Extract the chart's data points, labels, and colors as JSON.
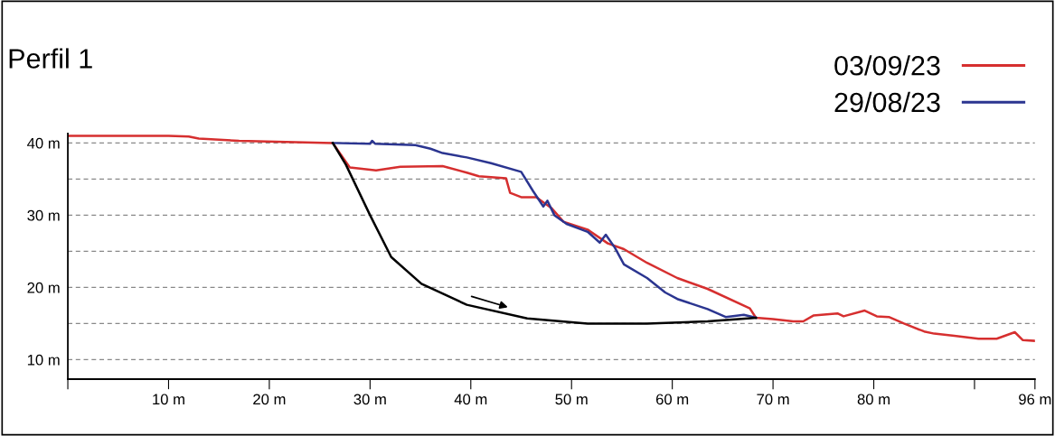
{
  "chart_data": {
    "type": "line",
    "title": "Perfil 1",
    "xlim": [
      0,
      96
    ],
    "ylim": [
      7.3,
      41.3
    ],
    "xticks": [
      {
        "value": 0,
        "label": null
      },
      {
        "value": 10,
        "label": "10 m"
      },
      {
        "value": 20,
        "label": "20 m"
      },
      {
        "value": 30,
        "label": "30 m"
      },
      {
        "value": 40,
        "label": "40 m"
      },
      {
        "value": 50,
        "label": "50 m"
      },
      {
        "value": 60,
        "label": "60 m"
      },
      {
        "value": 70,
        "label": "70 m"
      },
      {
        "value": 80,
        "label": "80 m"
      },
      {
        "value": 90,
        "label": null
      },
      {
        "value": 96,
        "label": "96 m"
      }
    ],
    "yticks": [
      {
        "value": 10,
        "label": "10 m"
      },
      {
        "value": 15,
        "label": null
      },
      {
        "value": 20,
        "label": "20 m"
      },
      {
        "value": 25,
        "label": null
      },
      {
        "value": 30,
        "label": "30 m"
      },
      {
        "value": 35,
        "label": null
      },
      {
        "value": 40,
        "label": "40 m"
      }
    ],
    "grid": "y",
    "legend": "top right",
    "line_style": "solid",
    "marker": "none",
    "series": [
      {
        "name": "03/09/23",
        "color": "#d62f2f",
        "x": [
          0,
          10,
          12,
          13,
          17,
          26.3,
          28.0,
          30.6,
          33,
          37.2,
          39.6,
          40.8,
          43.5,
          43.9,
          45.0,
          46.5,
          48.0,
          49.2,
          51.6,
          53.6,
          55.2,
          57.5,
          60.5,
          63.5,
          67.7,
          68.3,
          70,
          72,
          73,
          74,
          76.4,
          77,
          79.1,
          80.3,
          81.5,
          83.0,
          85.0,
          86,
          88,
          90.4,
          92.2,
          94.0,
          94.8,
          96
        ],
        "values": [
          41,
          41,
          40.9,
          40.6,
          40.3,
          40.0,
          36.6,
          36.2,
          36.7,
          36.8,
          35.9,
          35.4,
          35.1,
          33.1,
          32.5,
          32.5,
          31.0,
          29.1,
          28.0,
          26.1,
          25.3,
          23.4,
          21.3,
          19.8,
          17.1,
          15.8,
          15.6,
          15.3,
          15.3,
          16.1,
          16.4,
          16.0,
          16.8,
          16.0,
          15.9,
          15.0,
          13.9,
          13.6,
          13.3,
          12.9,
          12.9,
          13.8,
          12.7,
          12.6
        ]
      },
      {
        "name": "29/08/23",
        "color": "#2b3590",
        "x": [
          26.3,
          30.0,
          30.2,
          30.5,
          34.5,
          36.0,
          37.2,
          39.6,
          42.0,
          45.0,
          46.2,
          47.2,
          47.6,
          48.3,
          49.5,
          51.6,
          52.8,
          53.4,
          54.3,
          55.2,
          57.5,
          59.3,
          60.5,
          63.5,
          65.3,
          67.1,
          68.3
        ],
        "values": [
          40.0,
          39.9,
          40.3,
          39.9,
          39.7,
          39.2,
          38.6,
          38.0,
          37.2,
          36.0,
          33.3,
          31.2,
          32.0,
          30.0,
          28.8,
          27.7,
          26.2,
          27.3,
          25.5,
          23.2,
          21.3,
          19.3,
          18.4,
          17.0,
          15.9,
          16.2,
          15.8
        ]
      },
      {
        "color": "#000000",
        "x": [
          26.3,
          27.6,
          30.0,
          32.1,
          35.1,
          39.6,
          45.6,
          51.6,
          57.5,
          63.5,
          68.3
        ],
        "values": [
          40.0,
          37.0,
          30.0,
          24.2,
          20.5,
          17.6,
          15.7,
          15.0,
          15.0,
          15.3,
          15.8
        ]
      }
    ]
  }
}
